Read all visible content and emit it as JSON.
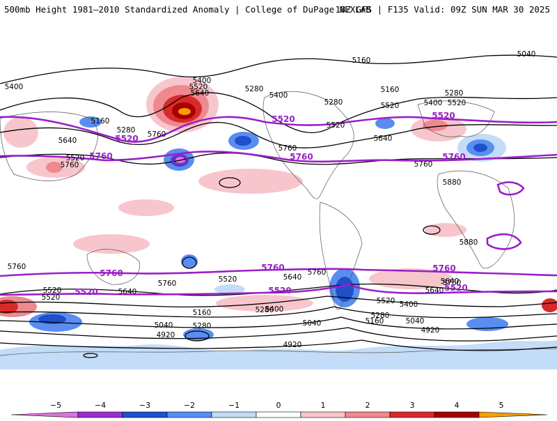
{
  "header": {
    "title_left": "500mb Height 1981–2010 Standardized Anomaly | College of DuPage NEXLAB",
    "title_right": "18Z GFS | F135 Valid: 09Z SUN MAR 30 2025"
  },
  "colors": {
    "anom_neg5": "#e070e0",
    "anom_neg4": "#9b30c8",
    "anom_neg3": "#1f4fcc",
    "anom_neg2": "#5a8df0",
    "anom_neg1": "#c3dcf8",
    "anom_pos1": "#f7c6cc",
    "anom_pos2": "#ee8a8f",
    "anom_pos3": "#d82a2a",
    "anom_pos4": "#a80000",
    "anom_pos5": "#f6a000",
    "highlight_contour": "#9a1fc9",
    "height_contour": "#000000",
    "coastline": "#555555"
  },
  "contour_labels": [
    {
      "text": "5400"
    },
    {
      "text": "5160"
    },
    {
      "text": "5280"
    },
    {
      "text": "5640"
    },
    {
      "text": "5520"
    },
    {
      "text": "5760"
    },
    {
      "text": "5760"
    },
    {
      "text": "5400"
    },
    {
      "text": "5520"
    },
    {
      "text": "5640"
    },
    {
      "text": "5280"
    },
    {
      "text": "5400"
    },
    {
      "text": "5160"
    },
    {
      "text": "5280"
    },
    {
      "text": "5520"
    },
    {
      "text": "5520"
    },
    {
      "text": "5760"
    },
    {
      "text": "5640"
    },
    {
      "text": "5160"
    },
    {
      "text": "5040"
    },
    {
      "text": "5280"
    },
    {
      "text": "5400"
    },
    {
      "text": "5520"
    },
    {
      "text": "5760"
    },
    {
      "text": "5880"
    },
    {
      "text": "5880"
    },
    {
      "text": "5760"
    },
    {
      "text": "5760"
    },
    {
      "text": "5520"
    },
    {
      "text": "5640"
    },
    {
      "text": "5280"
    },
    {
      "text": "5040"
    },
    {
      "text": "4920"
    },
    {
      "text": "5160"
    },
    {
      "text": "5280"
    },
    {
      "text": "5400"
    },
    {
      "text": "5520"
    },
    {
      "text": "5640"
    },
    {
      "text": "5760"
    },
    {
      "text": "5040"
    },
    {
      "text": "5160"
    },
    {
      "text": "4920"
    },
    {
      "text": "5280"
    },
    {
      "text": "5400"
    },
    {
      "text": "5520"
    },
    {
      "text": "5640"
    },
    {
      "text": "5760"
    },
    {
      "text": "5040"
    },
    {
      "text": "4920"
    },
    {
      "text": "5640"
    },
    {
      "text": "5520"
    }
  ],
  "highlight_labels": [
    {
      "text": "5520"
    },
    {
      "text": "5760"
    },
    {
      "text": "5520"
    },
    {
      "text": "5760"
    },
    {
      "text": "5520"
    },
    {
      "text": "5760"
    },
    {
      "text": "5760"
    },
    {
      "text": "5760"
    },
    {
      "text": "5520"
    },
    {
      "text": "5520"
    },
    {
      "text": "5520"
    },
    {
      "text": "5760"
    }
  ],
  "colorbar": {
    "ticks": [
      "−5",
      "−4",
      "−3",
      "−2",
      "−1",
      "0",
      "1",
      "2",
      "3",
      "4",
      "5"
    ]
  }
}
